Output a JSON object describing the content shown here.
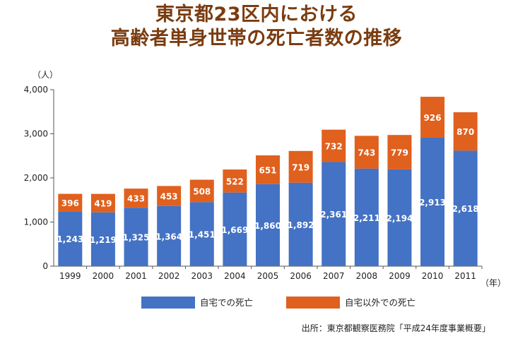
{
  "title_lines": [
    "東京都23区内における",
    "高齢者単身世帯の死亡者数の推移"
  ],
  "colors": {
    "home": "#4472c4",
    "outside": "#e0601e",
    "title": "#7a3c10"
  },
  "chart_data": {
    "type": "bar",
    "stacked": true,
    "categories": [
      "1999",
      "2000",
      "2001",
      "2002",
      "2003",
      "2004",
      "2005",
      "2006",
      "2007",
      "2008",
      "2009",
      "2010",
      "2011"
    ],
    "series": [
      {
        "name": "自宅での死亡",
        "values": [
          1243,
          1219,
          1325,
          1364,
          1451,
          1669,
          1860,
          1892,
          2361,
          2211,
          2194,
          2913,
          2618
        ],
        "labels": [
          "1,243",
          "1,219",
          "1,325",
          "1,364",
          "1,451",
          "1,669",
          "1,860",
          "1,892",
          "2,361",
          "2,211",
          "2,194",
          "2,913",
          "2,618"
        ]
      },
      {
        "name": "自宅以外での死亡",
        "values": [
          396,
          419,
          433,
          453,
          508,
          522,
          651,
          719,
          732,
          743,
          779,
          926,
          870
        ],
        "labels": [
          "396",
          "419",
          "433",
          "453",
          "508",
          "522",
          "651",
          "719",
          "732",
          "743",
          "779",
          "926",
          "870"
        ]
      }
    ],
    "ylim": [
      0,
      4000
    ],
    "yticks": [
      0,
      1000,
      2000,
      3000,
      4000
    ],
    "ytick_labels": [
      "0",
      "1,000",
      "2,000",
      "3,000",
      "4,000"
    ],
    "y_unit": "（人）",
    "x_unit": "（年）",
    "grid": false,
    "legend": "bottom"
  },
  "source": "出所：東京都観察医務院「平成24年度事業概要」"
}
